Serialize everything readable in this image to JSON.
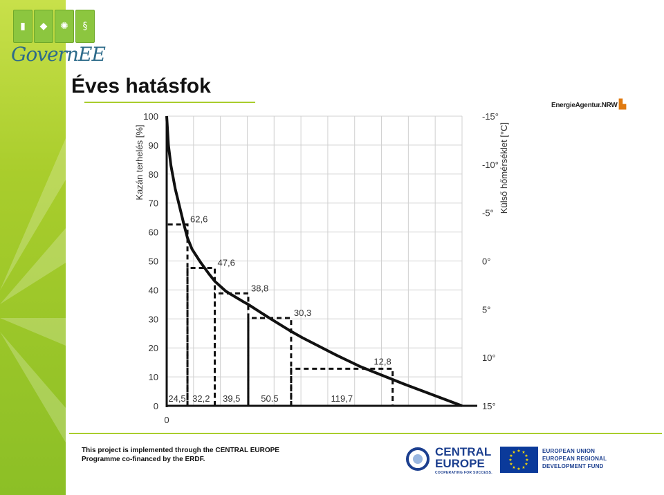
{
  "header": {
    "logo_text": "GovernEE",
    "logo_icons": [
      "building-icon",
      "leaf-icon",
      "sun-icon",
      "paragraph-icon"
    ],
    "title": "Éves hatásfok",
    "partner_logo": "EnergieAgentur.NRW"
  },
  "chart_data": {
    "type": "line",
    "ylabel": "Kazán terhelés [%]",
    "y2label": "Külső hőmérséklet [°C]",
    "ylim": [
      0,
      100
    ],
    "xlim": [
      0,
      348.2
    ],
    "x_origin_label": "0",
    "y_ticks": [
      "0",
      "10",
      "20",
      "30",
      "40",
      "50",
      "60",
      "70",
      "80",
      "90",
      "100"
    ],
    "y2_ticks": [
      "-15°",
      "-10°",
      "-5°",
      "0°",
      "5°",
      "10°",
      "15°"
    ],
    "grid": true,
    "series": [
      {
        "curve": "load-duration",
        "x": [
          0,
          2,
          5,
          10,
          15,
          20,
          24.5,
          30,
          40,
          50,
          56.7,
          70,
          90,
          96.2,
          120,
          145,
          160,
          200,
          228.5,
          280,
          348.2
        ],
        "y": [
          100,
          90,
          83,
          75,
          69,
          63,
          58,
          54,
          49.5,
          45.5,
          43,
          39.5,
          36,
          35,
          30.5,
          26,
          23.5,
          17.5,
          13.5,
          7.5,
          0
        ]
      }
    ],
    "steps": [
      {
        "width_label": "24,5",
        "x_start": 0,
        "x_end": 24.5,
        "y": 62.6,
        "label": "62,6"
      },
      {
        "width_label": "32,2",
        "x_start": 24.5,
        "x_end": 56.7,
        "y": 47.6,
        "label": "47,6"
      },
      {
        "width_label": "39,5",
        "x_start": 56.7,
        "x_end": 96.2,
        "y": 38.8,
        "label": "38,8"
      },
      {
        "width_label": "50.5",
        "x_start": 96.2,
        "x_end": 146.7,
        "y": 30.3,
        "label": "30,3"
      },
      {
        "width_label": "119,7",
        "x_start": 146.7,
        "x_end": 266.4,
        "y": 12.8,
        "label": "12,8"
      }
    ],
    "colors": {
      "curve": "#111111",
      "steps": "#111111",
      "grid": "#d0d0d0"
    }
  },
  "footer": {
    "line1": "This project is implemented through the CENTRAL EUROPE",
    "line2": "Programme co-financed by the ERDF.",
    "ce_name1": "CENTRAL",
    "ce_name2": "EUROPE",
    "ce_sub": "COOPERATING FOR SUCCESS.",
    "eu_line1": "EUROPEAN UNION",
    "eu_line2": "EUROPEAN REGIONAL",
    "eu_line3": "DEVELOPMENT FUND"
  }
}
